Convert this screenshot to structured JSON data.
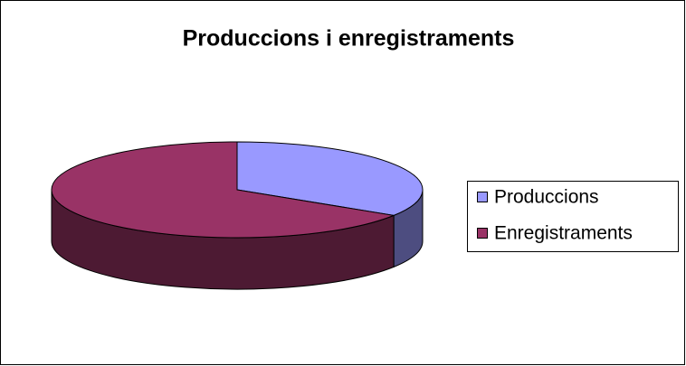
{
  "chart_data": {
    "type": "pie",
    "title": "Produccions i enregistraments",
    "categories": [
      "Produccions",
      "Enregistraments"
    ],
    "values": [
      34,
      66
    ],
    "colors": [
      "#9999ff",
      "#993366"
    ],
    "legend": "right"
  }
}
